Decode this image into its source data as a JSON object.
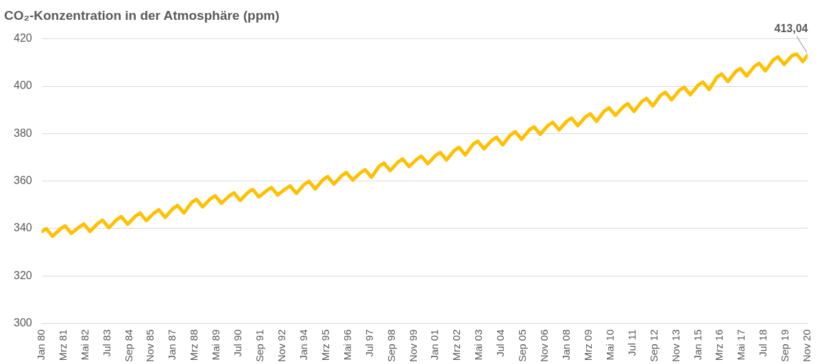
{
  "chart_data": {
    "type": "line",
    "title": "CO₂-Konzentration in der Atmosphäre (ppm)",
    "x": [
      "1980-01",
      "1980-04",
      "1980-08",
      "1981-01",
      "1981-04",
      "1981-08",
      "1982-01",
      "1982-04",
      "1982-08",
      "1983-01",
      "1983-04",
      "1983-08",
      "1984-01",
      "1984-04",
      "1984-08",
      "1985-01",
      "1985-04",
      "1985-08",
      "1986-01",
      "1986-04",
      "1986-08",
      "1987-01",
      "1987-04",
      "1987-08",
      "1988-01",
      "1988-04",
      "1988-08",
      "1989-01",
      "1989-04",
      "1989-08",
      "1990-01",
      "1990-04",
      "1990-08",
      "1991-01",
      "1991-04",
      "1991-08",
      "1992-01",
      "1992-04",
      "1992-08",
      "1993-01",
      "1993-04",
      "1993-08",
      "1994-01",
      "1994-04",
      "1994-08",
      "1995-01",
      "1995-04",
      "1995-08",
      "1996-01",
      "1996-04",
      "1996-08",
      "1997-01",
      "1997-04",
      "1997-08",
      "1998-01",
      "1998-04",
      "1998-08",
      "1999-01",
      "1999-04",
      "1999-08",
      "2000-01",
      "2000-04",
      "2000-08",
      "2001-01",
      "2001-04",
      "2001-08",
      "2002-01",
      "2002-04",
      "2002-08",
      "2003-01",
      "2003-04",
      "2003-08",
      "2004-01",
      "2004-04",
      "2004-08",
      "2005-01",
      "2005-04",
      "2005-08",
      "2006-01",
      "2006-04",
      "2006-08",
      "2007-01",
      "2007-04",
      "2007-08",
      "2008-01",
      "2008-04",
      "2008-08",
      "2009-01",
      "2009-04",
      "2009-08",
      "2010-01",
      "2010-04",
      "2010-08",
      "2011-01",
      "2011-04",
      "2011-08",
      "2012-01",
      "2012-04",
      "2012-08",
      "2013-01",
      "2013-04",
      "2013-08",
      "2014-01",
      "2014-04",
      "2014-08",
      "2015-01",
      "2015-04",
      "2015-08",
      "2016-01",
      "2016-04",
      "2016-08",
      "2017-01",
      "2017-04",
      "2017-08",
      "2018-01",
      "2018-04",
      "2018-08",
      "2019-01",
      "2019-04",
      "2019-08",
      "2020-01",
      "2020-04",
      "2020-08",
      "2020-11"
    ],
    "series": [
      {
        "color": "#ffc000",
        "values": [
          338.6,
          339.9,
          336.7,
          339.8,
          341.1,
          337.9,
          340.6,
          341.9,
          338.7,
          342.2,
          343.5,
          340.3,
          343.7,
          345.0,
          341.8,
          345.2,
          346.5,
          343.3,
          346.6,
          347.9,
          344.7,
          348.4,
          349.7,
          346.5,
          351.0,
          352.3,
          349.1,
          352.5,
          353.8,
          350.6,
          353.7,
          355.0,
          351.8,
          355.2,
          356.5,
          353.3,
          356.0,
          357.3,
          354.1,
          356.7,
          358.0,
          354.8,
          358.6,
          359.9,
          356.7,
          360.6,
          361.9,
          358.7,
          362.3,
          363.6,
          360.4,
          363.5,
          364.8,
          361.6,
          366.3,
          367.6,
          364.4,
          368.0,
          369.3,
          366.1,
          369.2,
          370.5,
          367.3,
          370.8,
          372.1,
          368.9,
          372.9,
          374.2,
          371.0,
          375.5,
          376.8,
          373.6,
          377.2,
          378.5,
          375.3,
          379.5,
          380.8,
          377.6,
          381.6,
          382.9,
          379.7,
          383.5,
          384.8,
          381.6,
          385.3,
          386.6,
          383.4,
          387.1,
          388.4,
          385.2,
          389.6,
          390.9,
          387.7,
          391.3,
          392.6,
          389.4,
          393.6,
          394.9,
          391.7,
          396.2,
          397.5,
          394.3,
          398.3,
          399.6,
          396.4,
          400.5,
          401.8,
          398.6,
          403.9,
          405.2,
          402.0,
          406.2,
          407.5,
          404.3,
          408.4,
          409.7,
          406.5,
          411.1,
          412.4,
          409.2,
          412.9,
          413.6,
          410.4,
          413.04
        ]
      }
    ],
    "xlim": [
      "1980-01",
      "2020-11"
    ],
    "xticks": [
      {
        "value": "1980-01",
        "label": "Jan 80"
      },
      {
        "value": "1981-03",
        "label": "Mrz 81"
      },
      {
        "value": "1982-05",
        "label": "Mai 82"
      },
      {
        "value": "1983-07",
        "label": "Jul 83"
      },
      {
        "value": "1984-09",
        "label": "Sep 84"
      },
      {
        "value": "1985-11",
        "label": "Nov 85"
      },
      {
        "value": "1987-01",
        "label": "Jan 87"
      },
      {
        "value": "1988-03",
        "label": "Mrz 88"
      },
      {
        "value": "1989-05",
        "label": "Mai 89"
      },
      {
        "value": "1990-07",
        "label": "Jul 90"
      },
      {
        "value": "1991-09",
        "label": "Sep 91"
      },
      {
        "value": "1992-11",
        "label": "Nov 92"
      },
      {
        "value": "1994-01",
        "label": "Jan 94"
      },
      {
        "value": "1995-03",
        "label": "Mrz 95"
      },
      {
        "value": "1996-05",
        "label": "Mai 96"
      },
      {
        "value": "1997-07",
        "label": "Jul 97"
      },
      {
        "value": "1998-09",
        "label": "Sep 98"
      },
      {
        "value": "1999-11",
        "label": "Nov 99"
      },
      {
        "value": "2001-01",
        "label": "Jan 01"
      },
      {
        "value": "2002-03",
        "label": "Mrz 02"
      },
      {
        "value": "2003-05",
        "label": "Mai 03"
      },
      {
        "value": "2004-07",
        "label": "Jul 04"
      },
      {
        "value": "2005-09",
        "label": "Sep 05"
      },
      {
        "value": "2006-11",
        "label": "Nov 06"
      },
      {
        "value": "2008-01",
        "label": "Jan 08"
      },
      {
        "value": "2009-03",
        "label": "Mrz 09"
      },
      {
        "value": "2010-05",
        "label": "Mai 10"
      },
      {
        "value": "2011-07",
        "label": "Jul 11"
      },
      {
        "value": "2012-09",
        "label": "Sep 12"
      },
      {
        "value": "2013-11",
        "label": "Nov 13"
      },
      {
        "value": "2015-01",
        "label": "Jan 15"
      },
      {
        "value": "2016-03",
        "label": "Mrz 16"
      },
      {
        "value": "2017-05",
        "label": "Mai 17"
      },
      {
        "value": "2018-07",
        "label": "Jul 18"
      },
      {
        "value": "2019-09",
        "label": "Sep 19"
      },
      {
        "value": "2020-11",
        "label": "Nov 20"
      }
    ],
    "ylim": [
      300,
      420
    ],
    "yticks": [
      300,
      320,
      340,
      360,
      380,
      400,
      420
    ],
    "grid": "y",
    "legend": false,
    "marker": "none",
    "line_style": "solid",
    "annotations": [
      {
        "text": "413,04",
        "x": "2020-11",
        "y": 413.04
      }
    ]
  }
}
